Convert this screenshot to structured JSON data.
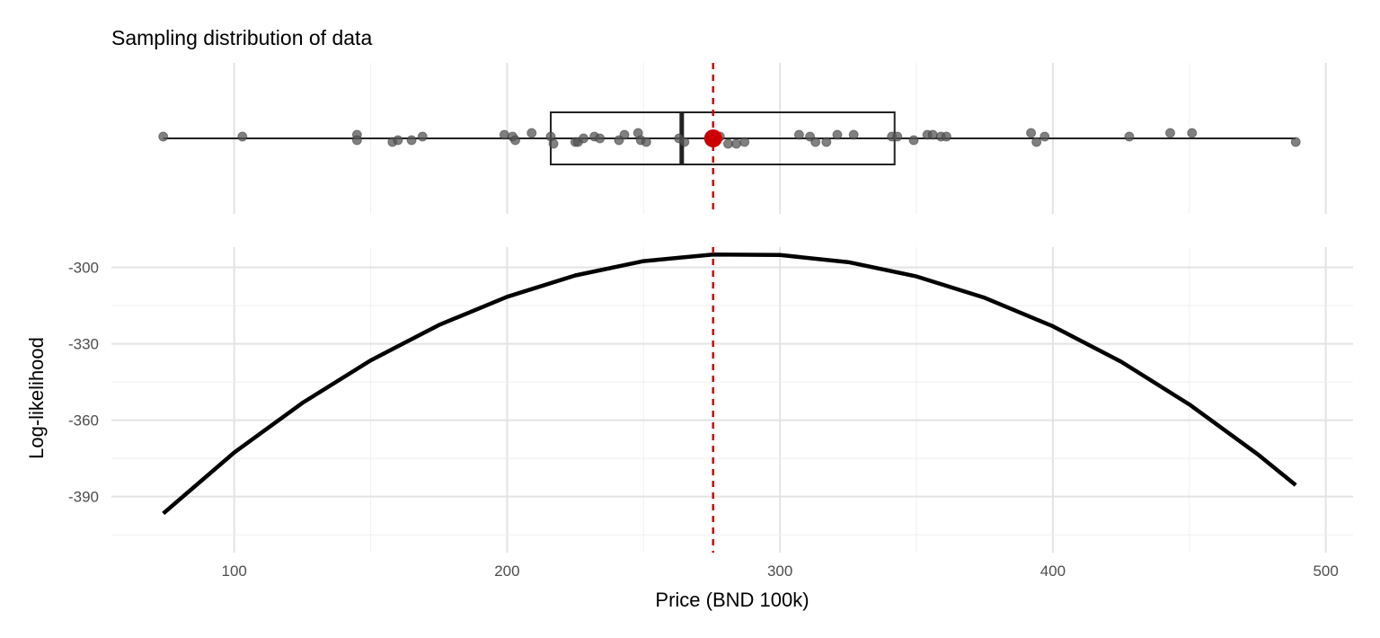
{
  "chart_data": [
    {
      "panel": "top",
      "type": "boxplot",
      "title": "Sampling distribution of data",
      "xlim": [
        55,
        510
      ],
      "grid": true,
      "box": {
        "min": 74,
        "q1": 216,
        "median": 264,
        "q3": 342,
        "max": 489
      },
      "points": [
        {
          "x": 74,
          "j": 0.05
        },
        {
          "x": 103,
          "j": 0.05
        },
        {
          "x": 145,
          "j": 0.1
        },
        {
          "x": 145,
          "j": -0.05
        },
        {
          "x": 158,
          "j": -0.1
        },
        {
          "x": 160,
          "j": -0.05
        },
        {
          "x": 165,
          "j": -0.05
        },
        {
          "x": 169,
          "j": 0.05
        },
        {
          "x": 199,
          "j": 0.1
        },
        {
          "x": 202,
          "j": 0.05
        },
        {
          "x": 203,
          "j": -0.05
        },
        {
          "x": 209,
          "j": 0.15
        },
        {
          "x": 216,
          "j": 0.05
        },
        {
          "x": 217,
          "j": -0.15
        },
        {
          "x": 225,
          "j": -0.1
        },
        {
          "x": 226,
          "j": -0.1
        },
        {
          "x": 228,
          "j": 0.0
        },
        {
          "x": 232,
          "j": 0.05
        },
        {
          "x": 234,
          "j": 0.0
        },
        {
          "x": 241,
          "j": -0.05
        },
        {
          "x": 243,
          "j": 0.1
        },
        {
          "x": 248,
          "j": 0.15
        },
        {
          "x": 249,
          "j": -0.05
        },
        {
          "x": 251,
          "j": -0.1
        },
        {
          "x": 263,
          "j": 0.0
        },
        {
          "x": 265,
          "j": -0.1
        },
        {
          "x": 278,
          "j": 0.05
        },
        {
          "x": 281,
          "j": -0.15
        },
        {
          "x": 284,
          "j": -0.15
        },
        {
          "x": 287,
          "j": -0.1
        },
        {
          "x": 307,
          "j": 0.1
        },
        {
          "x": 311,
          "j": 0.05
        },
        {
          "x": 313,
          "j": -0.1
        },
        {
          "x": 317,
          "j": -0.1
        },
        {
          "x": 321,
          "j": 0.1
        },
        {
          "x": 327,
          "j": 0.1
        },
        {
          "x": 341,
          "j": 0.05
        },
        {
          "x": 343,
          "j": 0.05
        },
        {
          "x": 349,
          "j": -0.05
        },
        {
          "x": 354,
          "j": 0.1
        },
        {
          "x": 356,
          "j": 0.1
        },
        {
          "x": 359,
          "j": 0.05
        },
        {
          "x": 361,
          "j": 0.05
        },
        {
          "x": 392,
          "j": 0.15
        },
        {
          "x": 394,
          "j": -0.1
        },
        {
          "x": 397,
          "j": 0.05
        },
        {
          "x": 428,
          "j": 0.05
        },
        {
          "x": 443,
          "j": 0.15
        },
        {
          "x": 451,
          "j": 0.15
        },
        {
          "x": 489,
          "j": -0.1
        }
      ],
      "mean": 275.5,
      "point_color": "#555555",
      "mean_color": "#cc0000",
      "box_color": "#222222"
    },
    {
      "panel": "bottom",
      "type": "line",
      "x": [
        74,
        100,
        125,
        150,
        175,
        200,
        225,
        250,
        275.5,
        300,
        325,
        350,
        375,
        400,
        425,
        450,
        475,
        489
      ],
      "y": [
        -396.6,
        -372.7,
        -353.2,
        -336.5,
        -322.6,
        -311.5,
        -303.1,
        -297.5,
        -294.9,
        -295.1,
        -297.9,
        -303.5,
        -311.9,
        -323.1,
        -337.0,
        -353.8,
        -373.3,
        -385.5
      ],
      "xlabel": "Price (BND 100k)",
      "ylabel": "Log-likelihood",
      "xlim": [
        55,
        510
      ],
      "ylim": [
        -412,
        -292
      ],
      "xticks": [
        100,
        200,
        300,
        400,
        500
      ],
      "yticks": [
        -300,
        -330,
        -360,
        -390
      ],
      "grid": true,
      "line_color": "#000000",
      "vline": {
        "x": 275.5,
        "color": "#cc0000",
        "style": "dashed"
      }
    }
  ],
  "axis": {
    "x_tick_labels": [
      "100",
      "200",
      "300",
      "400",
      "500"
    ],
    "y_tick_labels": [
      "-300",
      "-330",
      "-360",
      "-390"
    ],
    "xlabel": "Price (BND 100k)",
    "ylabel": "Log-likelihood"
  },
  "title": "Sampling distribution of data"
}
